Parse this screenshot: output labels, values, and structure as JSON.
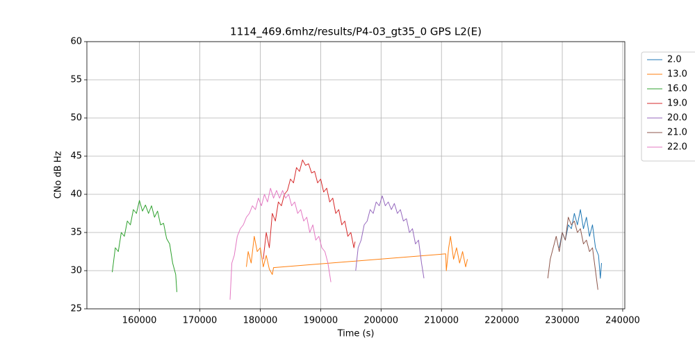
{
  "chart_data": {
    "type": "line",
    "title": "1114_469.6mhz/results/P4-03_gt35_0 GPS L2(E)",
    "xlabel": "Time (s)",
    "ylabel": "CNo dB Hz",
    "xlim": [
      151300,
      240350
    ],
    "ylim": [
      25,
      60
    ],
    "xticks": [
      160000,
      170000,
      180000,
      190000,
      200000,
      210000,
      220000,
      230000,
      240000
    ],
    "yticks": [
      25,
      30,
      35,
      40,
      45,
      50,
      55,
      60
    ],
    "grid": true,
    "legend": "outside upper right",
    "series": [
      {
        "name": "2.0",
        "color": "#1f77b4",
        "x": [
          229500,
          230000,
          230500,
          231000,
          231500,
          232000,
          232500,
          233000,
          233500,
          234000,
          234500,
          235000,
          235500,
          236000,
          236300,
          236500
        ],
        "values": [
          33,
          35,
          34,
          36,
          35.5,
          37.5,
          36,
          38,
          35.5,
          37,
          34.5,
          36,
          33,
          32,
          29,
          31
        ]
      },
      {
        "name": "13.0",
        "color": "#ff7f0e",
        "x": [
          177700,
          178000,
          178500,
          179000,
          179500,
          180000,
          180500,
          181000,
          181500,
          182000,
          182200,
          210700,
          210800,
          211200,
          211500,
          212000,
          212500,
          213000,
          213500,
          214000,
          214300
        ],
        "values": [
          30.5,
          32.5,
          31,
          34.5,
          32.5,
          33,
          30.5,
          32,
          30.2,
          29.5,
          30.4,
          32.2,
          30,
          33,
          34.5,
          31.5,
          33,
          31,
          32.5,
          30.5,
          31.5
        ]
      },
      {
        "name": "16.0",
        "color": "#2ca02c",
        "x": [
          155500,
          156000,
          156500,
          157000,
          157500,
          158000,
          158500,
          159000,
          159500,
          160000,
          160500,
          161000,
          161500,
          162000,
          162500,
          163000,
          163500,
          164000,
          164500,
          165000,
          165500,
          166000,
          166200
        ],
        "values": [
          29.8,
          33,
          32.5,
          35,
          34.5,
          36.5,
          36,
          38,
          37.5,
          39.2,
          37.8,
          38.6,
          37.5,
          38.5,
          37,
          37.8,
          36,
          36.2,
          34.2,
          33.5,
          31,
          29.5,
          27.2
        ]
      },
      {
        "name": "19.0",
        "color": "#d62728",
        "x": [
          180500,
          181000,
          181500,
          182000,
          182500,
          183000,
          183500,
          184000,
          184500,
          185000,
          185500,
          186000,
          186500,
          187000,
          187500,
          188000,
          188500,
          189000,
          189500,
          190000,
          190500,
          191000,
          191500,
          192000,
          192500,
          193000,
          193500,
          194000,
          194500,
          195000,
          195500,
          195700
        ],
        "values": [
          31.5,
          35,
          33,
          37.5,
          36.5,
          39,
          38.5,
          40,
          40.5,
          42,
          41.5,
          43.5,
          43,
          44.5,
          43.8,
          44,
          42.8,
          43,
          41.5,
          42,
          40.3,
          40.8,
          39,
          39.5,
          37.5,
          38,
          36,
          36.5,
          34.5,
          35,
          33,
          33.8
        ]
      },
      {
        "name": "20.0",
        "color": "#9467bd",
        "x": [
          195800,
          196200,
          196700,
          197200,
          197700,
          198200,
          198700,
          199200,
          199700,
          200200,
          200700,
          201200,
          201700,
          202200,
          202700,
          203200,
          203700,
          204200,
          204700,
          205200,
          205700,
          206200,
          206700,
          207100
        ],
        "values": [
          30,
          33,
          34,
          36,
          36.5,
          38,
          37.5,
          39,
          38.5,
          39.8,
          38.5,
          39,
          38,
          38.8,
          37.5,
          38,
          36.5,
          36.8,
          35,
          35.5,
          33.5,
          34,
          31,
          29
        ]
      },
      {
        "name": "21.0",
        "color": "#8c564b",
        "x": [
          227600,
          228000,
          228500,
          229000,
          229500,
          230000,
          230500,
          231000,
          231500,
          232000,
          232500,
          233000,
          233500,
          234000,
          234500,
          235000,
          235500,
          235900
        ],
        "values": [
          29,
          31.5,
          33,
          34.5,
          32.5,
          35,
          34,
          37,
          36,
          36.5,
          35,
          35.5,
          33.5,
          34,
          32.5,
          33,
          30,
          27.5
        ]
      },
      {
        "name": "22.0",
        "color": "#e377c2",
        "x": [
          175000,
          175300,
          175700,
          176200,
          176700,
          177200,
          177700,
          178200,
          178700,
          179200,
          179700,
          180200,
          180700,
          181200,
          181700,
          182200,
          182700,
          183200,
          183700,
          184200,
          184700,
          185200,
          185700,
          186200,
          186700,
          187200,
          187700,
          188200,
          188700,
          189200,
          189700,
          190200,
          190700,
          191200,
          191700
        ],
        "values": [
          26.2,
          31,
          32,
          34.5,
          35.5,
          36,
          37,
          37.5,
          38.5,
          38,
          39.5,
          38.5,
          40,
          39,
          40.8,
          39.5,
          40.5,
          39.5,
          40.5,
          39.5,
          40,
          38.5,
          39,
          37.5,
          38,
          36.5,
          37,
          35,
          36,
          34,
          34.5,
          33,
          32.5,
          31,
          28.5
        ]
      }
    ]
  }
}
